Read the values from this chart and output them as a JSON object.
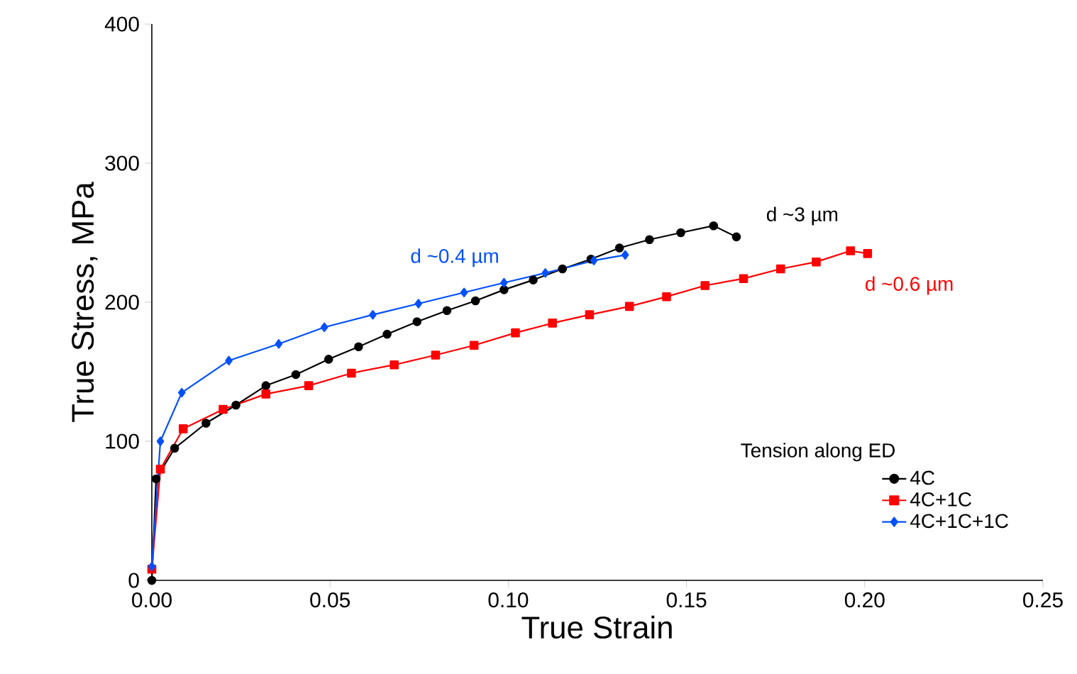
{
  "chart_data": {
    "type": "line",
    "xlabel": "True Strain",
    "ylabel": "True Stress, MPa",
    "legend_title": "Tension along ED",
    "legend": "bottom right",
    "grid": false,
    "line_style": "solid",
    "xlim": [
      0,
      0.25
    ],
    "xticks": [
      {
        "value": 0,
        "label": "0.00"
      },
      0.05,
      {
        "value": 0.1,
        "label": "0.10"
      },
      0.15,
      {
        "value": 0.2,
        "label": "0.20"
      },
      0.25
    ],
    "ylim": [
      0,
      400
    ],
    "yticks": [
      0,
      100,
      200,
      300,
      400
    ],
    "series": [
      {
        "name": "4C",
        "color": "#000000",
        "marker": "circle",
        "x": [
          0,
          0.0012,
          0.0064,
          0.0152,
          0.0236,
          0.032,
          0.0404,
          0.0496,
          0.058,
          0.066,
          0.0744,
          0.0828,
          0.0908,
          0.0988,
          0.107,
          0.1152,
          0.1232,
          0.1312,
          0.1396,
          0.1484,
          0.1576,
          0.164
        ],
        "values": [
          0,
          73,
          95,
          113,
          126,
          140,
          148,
          159,
          168,
          177,
          186,
          194,
          201,
          209,
          216,
          224,
          231,
          239,
          245,
          250,
          255,
          247
        ]
      },
      {
        "name": "4C+1C",
        "color": "#ff0000",
        "marker": "square",
        "x": [
          0,
          0.0024,
          0.0088,
          0.02,
          0.032,
          0.044,
          0.056,
          0.068,
          0.0796,
          0.0904,
          0.102,
          0.1124,
          0.1228,
          0.134,
          0.1444,
          0.1552,
          0.166,
          0.1764,
          0.1864,
          0.196,
          0.2008
        ],
        "values": [
          8,
          80,
          109,
          123,
          134,
          140,
          149,
          155,
          162,
          169,
          178,
          185,
          191,
          197,
          204,
          212,
          217,
          224,
          229,
          237,
          235
        ]
      },
      {
        "name": "4C+1C+1C",
        "color": "#0050ff",
        "marker": "diamond",
        "x": [
          0,
          0.0024,
          0.0084,
          0.0216,
          0.0356,
          0.0484,
          0.062,
          0.0748,
          0.0876,
          0.0988,
          0.1104,
          0.124,
          0.1328
        ],
        "values": [
          10,
          100,
          135,
          158,
          170,
          182,
          191,
          199,
          207,
          214,
          221,
          230,
          234
        ]
      }
    ],
    "annotations": [
      "d ~0.4 µm",
      "d ~3 µm",
      "d ~0.6 µm"
    ]
  }
}
